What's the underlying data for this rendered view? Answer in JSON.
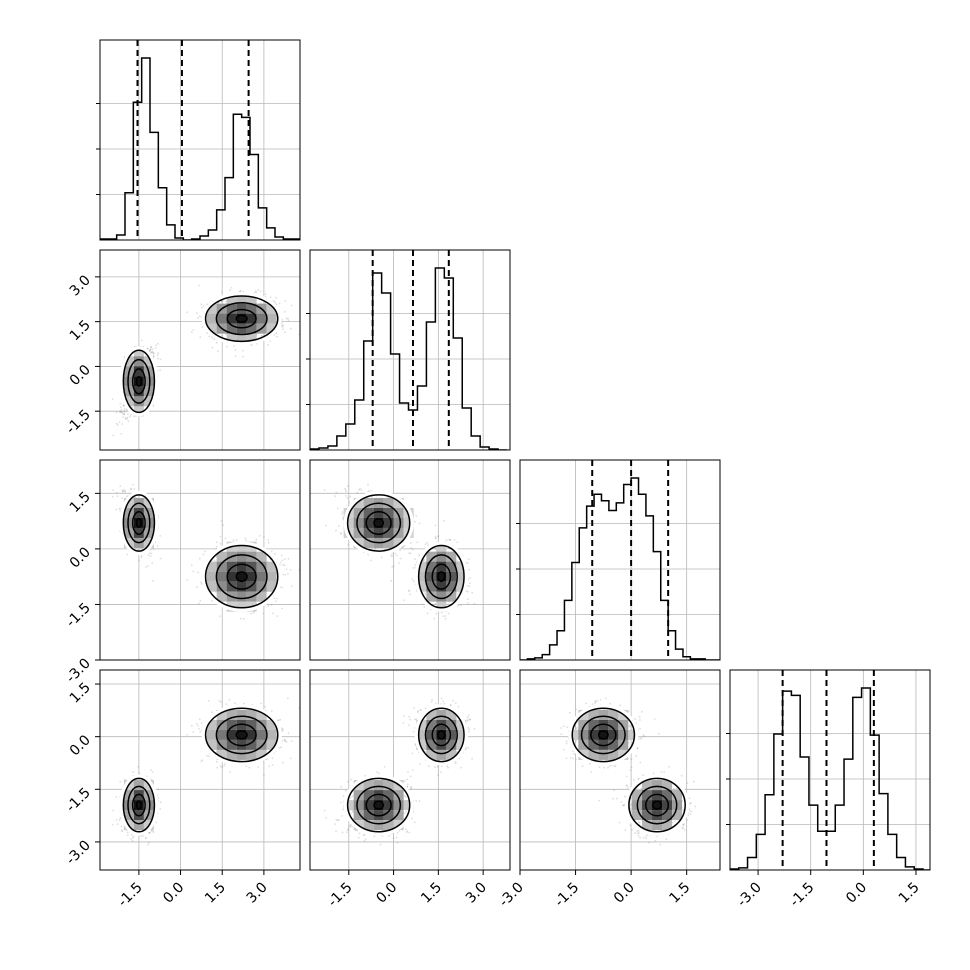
{
  "chart_data": {
    "type": "corner",
    "grid": true,
    "parameters": [
      {
        "name": "",
        "range": [
          -2.9,
          4.3
        ],
        "ticks": [
          "-1.5",
          "0.0",
          "1.5",
          "3.0"
        ],
        "quantiles": [
          -1.55,
          0.05,
          2.45
        ]
      },
      {
        "name": "",
        "range": [
          -2.8,
          3.9
        ],
        "ticks": [
          "-1.5",
          "0.0",
          "1.5",
          "3.0"
        ],
        "quantiles": [
          -0.7,
          0.65,
          1.85
        ]
      },
      {
        "name": "",
        "range": [
          -3.0,
          2.4
        ],
        "ticks": [
          "-3.0",
          "-1.5",
          "0.0",
          "1.5"
        ],
        "quantiles": [
          -1.05,
          0.0,
          1.0
        ]
      },
      {
        "name": "",
        "range": [
          -3.8,
          1.9
        ],
        "ticks": [
          "-3.0",
          "-1.5",
          "0.0",
          "1.5"
        ],
        "quantiles": [
          -2.3,
          -1.05,
          0.3
        ]
      }
    ],
    "histograms": [
      {
        "edges": [
          -2.9,
          -2.6,
          -2.3,
          -2.0,
          -1.7,
          -1.4,
          -1.1,
          -0.8,
          -0.5,
          -0.2,
          0.1,
          0.4,
          0.7,
          1.0,
          1.3,
          1.6,
          1.9,
          2.2,
          2.5,
          2.8,
          3.1,
          3.4,
          3.7,
          4.0,
          4.3
        ],
        "counts": [
          1,
          1,
          5,
          47,
          137,
          181,
          107,
          52,
          15,
          2,
          0,
          1,
          4,
          10,
          30,
          62,
          125,
          122,
          85,
          32,
          12,
          3,
          1,
          1
        ]
      },
      {
        "edges": [
          -2.8,
          -2.5,
          -2.2,
          -1.9,
          -1.6,
          -1.3,
          -1.0,
          -0.7,
          -0.4,
          -0.1,
          0.2,
          0.5,
          0.8,
          1.1,
          1.4,
          1.7,
          2.0,
          2.3,
          2.6,
          2.9,
          3.2,
          3.5,
          3.8
        ],
        "counts": [
          1,
          2,
          4,
          14,
          26,
          50,
          109,
          177,
          157,
          96,
          47,
          40,
          64,
          128,
          182,
          172,
          112,
          42,
          14,
          3,
          1,
          0
        ]
      },
      {
        "edges": [
          -3.0,
          -2.8,
          -2.6,
          -2.4,
          -2.2,
          -2.0,
          -1.8,
          -1.6,
          -1.4,
          -1.2,
          -1.0,
          -0.8,
          -0.6,
          -0.4,
          -0.2,
          0.0,
          0.2,
          0.4,
          0.6,
          0.8,
          1.0,
          1.2,
          1.4,
          1.6,
          1.8,
          2.0,
          2.2,
          2.4
        ],
        "counts": [
          0,
          1,
          2,
          5,
          14,
          27,
          55,
          90,
          122,
          142,
          153,
          147,
          138,
          145,
          162,
          168,
          153,
          133,
          100,
          55,
          27,
          10,
          3,
          1,
          1,
          0,
          0
        ]
      },
      {
        "edges": [
          -3.8,
          -3.55,
          -3.3,
          -3.05,
          -2.8,
          -2.55,
          -2.3,
          -2.05,
          -1.8,
          -1.55,
          -1.3,
          -1.05,
          -0.8,
          -0.55,
          -0.3,
          -0.05,
          0.2,
          0.45,
          0.7,
          0.95,
          1.2,
          1.45,
          1.7,
          1.9
        ],
        "counts": [
          1,
          2,
          12,
          34,
          72,
          130,
          171,
          167,
          108,
          62,
          37,
          37,
          62,
          106,
          165,
          174,
          129,
          73,
          34,
          12,
          3,
          1,
          0
        ]
      }
    ],
    "clusters": [
      {
        "mean": [
          -1.5,
          -0.5,
          0.7,
          -1.95
        ],
        "sd": [
          0.28,
          0.52,
          0.38,
          0.38
        ]
      },
      {
        "mean": [
          2.2,
          1.6,
          -0.75,
          0.05
        ],
        "sd": [
          0.65,
          0.38,
          0.42,
          0.38
        ]
      }
    ]
  }
}
